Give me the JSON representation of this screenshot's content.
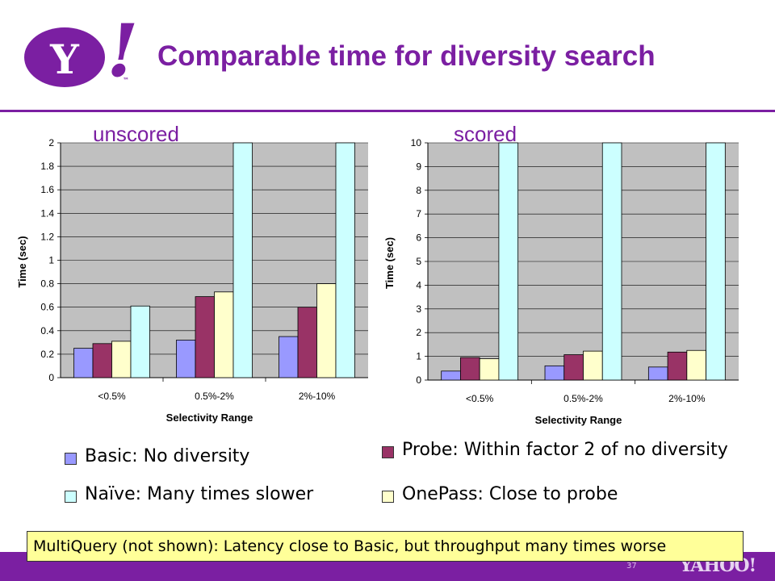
{
  "slide": {
    "title": "Comparable time for diversity search",
    "logo_text": "Y",
    "logo_bang": "!",
    "logo_tm": "™",
    "page_number": "37",
    "footer_logo_text": "YAHOO!",
    "callout": "MultiQuery (not shown): Latency close to Basic, but throughput many times worse",
    "legend": [
      {
        "label": "Basic: No diversity",
        "color": "#9999ff"
      },
      {
        "label": "Probe: Within factor 2 of no diversity",
        "color": "#993366"
      },
      {
        "label": "Naïve: Many times slower",
        "color": "#ccffff"
      },
      {
        "label": "OnePass: Close to probe",
        "color": "#ffffcc"
      }
    ]
  },
  "chart_data": [
    {
      "type": "bar",
      "label": "unscored",
      "xlabel": "Selectivity Range",
      "ylabel": "Time (sec)",
      "ylim": [
        0,
        2
      ],
      "yticks": [
        "0",
        "0.2",
        "0.4",
        "0.6",
        "0.8",
        "1",
        "1.2",
        "1.4",
        "1.6",
        "1.8",
        "2"
      ],
      "categories": [
        "<0.5%",
        "0.5%-2%",
        "2%-10%"
      ],
      "grid": true,
      "series": [
        {
          "name": "Basic",
          "color": "#9999ff",
          "values": [
            0.25,
            0.32,
            0.35
          ]
        },
        {
          "name": "Probe",
          "color": "#993366",
          "values": [
            0.29,
            0.69,
            0.6
          ]
        },
        {
          "name": "OnePass",
          "color": "#ffffcc",
          "values": [
            0.31,
            0.73,
            0.8
          ]
        },
        {
          "name": "Naïve",
          "color": "#ccffff",
          "values": [
            0.61,
            2,
            2
          ]
        }
      ]
    },
    {
      "type": "bar",
      "label": "scored",
      "xlabel": "Selectivity Range",
      "ylabel": "Time (sec)",
      "ylim": [
        0,
        10
      ],
      "yticks": [
        "0",
        "1",
        "2",
        "3",
        "4",
        "5",
        "6",
        "7",
        "8",
        "9",
        "10"
      ],
      "categories": [
        "<0.5%",
        "0.5%-2%",
        "2%-10%"
      ],
      "grid": true,
      "series": [
        {
          "name": "Basic",
          "color": "#9999ff",
          "values": [
            0.38,
            0.6,
            0.55
          ]
        },
        {
          "name": "Probe",
          "color": "#993366",
          "values": [
            0.95,
            1.07,
            1.18
          ]
        },
        {
          "name": "OnePass",
          "color": "#ffffcc",
          "values": [
            0.9,
            1.22,
            1.25
          ]
        },
        {
          "name": "Naïve",
          "color": "#ccffff",
          "values": [
            10,
            10,
            10
          ]
        }
      ]
    }
  ]
}
